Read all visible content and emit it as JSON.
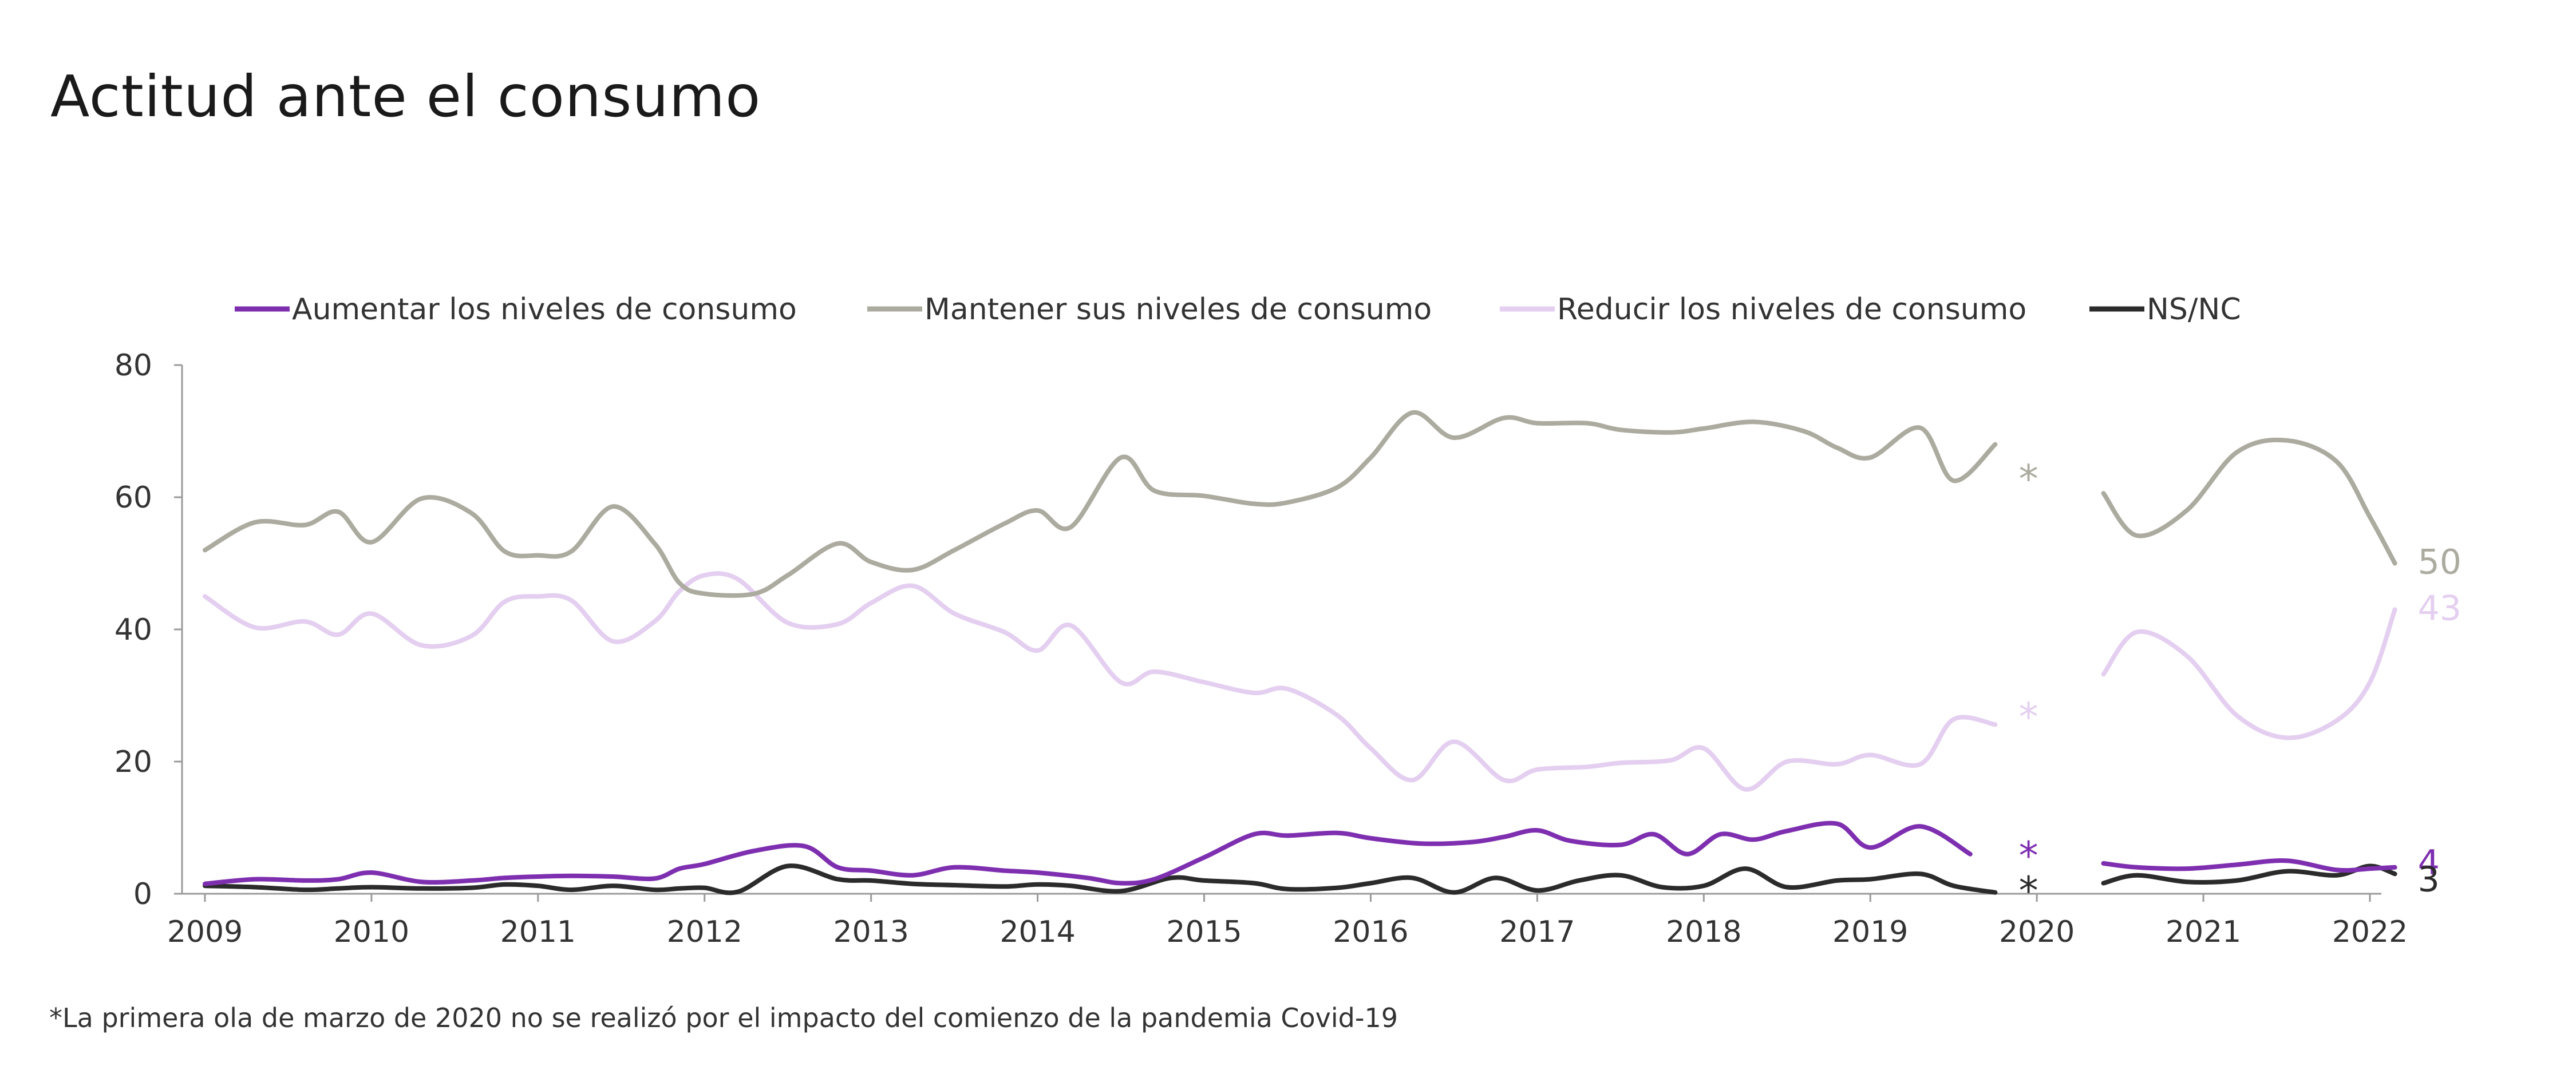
{
  "chart_data": {
    "type": "line",
    "title": "Actitud ante el consumo",
    "footnote": "*La primera ola de marzo de 2020 no se realizó por el impacto del comienzo de la pandemia Covid-19",
    "ylim": [
      0,
      80
    ],
    "yticks": [
      0,
      20,
      40,
      60,
      80
    ],
    "xlim": [
      2009,
      2022
    ],
    "xticks": [
      2009,
      2010,
      2011,
      2012,
      2013,
      2014,
      2015,
      2016,
      2017,
      2018,
      2019,
      2020,
      2021,
      2022
    ],
    "legend_position": "top",
    "grid": false,
    "missing_marker": "*",
    "series": [
      {
        "name": "Aumentar los niveles de consumo",
        "color": "#7e2fb0",
        "end_label": "4",
        "missing_y": 6.5,
        "segments": [
          [
            [
              2009.0,
              1.5
            ],
            [
              2009.3,
              2.2
            ],
            [
              2009.6,
              2.0
            ],
            [
              2009.8,
              2.2
            ],
            [
              2010.0,
              3.2
            ],
            [
              2010.3,
              1.8
            ],
            [
              2010.6,
              2.0
            ],
            [
              2010.8,
              2.4
            ],
            [
              2011.0,
              2.6
            ],
            [
              2011.2,
              2.7
            ],
            [
              2011.45,
              2.6
            ],
            [
              2011.7,
              2.3
            ],
            [
              2011.85,
              3.8
            ],
            [
              2012.0,
              4.5
            ],
            [
              2012.3,
              6.5
            ],
            [
              2012.6,
              7.2
            ],
            [
              2012.8,
              4.0
            ],
            [
              2013.0,
              3.5
            ],
            [
              2013.25,
              2.8
            ],
            [
              2013.5,
              4.0
            ],
            [
              2013.8,
              3.5
            ],
            [
              2014.0,
              3.2
            ],
            [
              2014.3,
              2.4
            ],
            [
              2014.5,
              1.6
            ],
            [
              2014.7,
              2.2
            ],
            [
              2015.0,
              5.5
            ],
            [
              2015.3,
              9.0
            ],
            [
              2015.5,
              8.8
            ],
            [
              2015.8,
              9.2
            ],
            [
              2016.0,
              8.4
            ],
            [
              2016.3,
              7.6
            ],
            [
              2016.6,
              7.8
            ],
            [
              2016.8,
              8.6
            ],
            [
              2017.0,
              9.6
            ],
            [
              2017.2,
              8.0
            ],
            [
              2017.5,
              7.4
            ],
            [
              2017.7,
              9.0
            ],
            [
              2017.9,
              6.0
            ],
            [
              2018.1,
              9.0
            ],
            [
              2018.3,
              8.2
            ],
            [
              2018.5,
              9.5
            ],
            [
              2018.8,
              10.6
            ],
            [
              2019.0,
              7.0
            ],
            [
              2019.3,
              10.2
            ],
            [
              2019.6,
              6.0
            ]
          ],
          [
            [
              2020.4,
              4.6
            ],
            [
              2020.6,
              4.0
            ],
            [
              2020.9,
              3.8
            ],
            [
              2021.2,
              4.4
            ],
            [
              2021.5,
              5.0
            ],
            [
              2021.8,
              3.6
            ],
            [
              2022.0,
              3.8
            ],
            [
              2022.15,
              4.0
            ]
          ]
        ]
      },
      {
        "name": "Mantener sus niveles de consumo",
        "color": "#acab9f",
        "end_label": "50",
        "missing_y": 63.5,
        "segments": [
          [
            [
              2009.0,
              52.0
            ],
            [
              2009.3,
              56.2
            ],
            [
              2009.6,
              55.8
            ],
            [
              2009.8,
              57.8
            ],
            [
              2010.0,
              53.2
            ],
            [
              2010.3,
              59.8
            ],
            [
              2010.6,
              57.6
            ],
            [
              2010.8,
              51.8
            ],
            [
              2011.0,
              51.2
            ],
            [
              2011.2,
              51.8
            ],
            [
              2011.45,
              58.6
            ],
            [
              2011.7,
              53.0
            ],
            [
              2011.85,
              47.0
            ],
            [
              2012.0,
              45.4
            ],
            [
              2012.3,
              45.4
            ],
            [
              2012.5,
              48.2
            ],
            [
              2012.8,
              53.0
            ],
            [
              2013.0,
              50.2
            ],
            [
              2013.25,
              49.0
            ],
            [
              2013.5,
              52.0
            ],
            [
              2013.8,
              56.0
            ],
            [
              2014.0,
              58.0
            ],
            [
              2014.2,
              55.5
            ],
            [
              2014.5,
              66.0
            ],
            [
              2014.7,
              61.0
            ],
            [
              2015.0,
              60.2
            ],
            [
              2015.3,
              59.0
            ],
            [
              2015.5,
              59.2
            ],
            [
              2015.8,
              61.5
            ],
            [
              2016.0,
              66.0
            ],
            [
              2016.25,
              72.8
            ],
            [
              2016.5,
              69.0
            ],
            [
              2016.8,
              72.0
            ],
            [
              2017.0,
              71.2
            ],
            [
              2017.3,
              71.2
            ],
            [
              2017.5,
              70.2
            ],
            [
              2017.8,
              69.8
            ],
            [
              2018.0,
              70.4
            ],
            [
              2018.3,
              71.4
            ],
            [
              2018.6,
              70.0
            ],
            [
              2018.8,
              67.5
            ],
            [
              2019.0,
              66.0
            ],
            [
              2019.3,
              70.5
            ],
            [
              2019.5,
              62.5
            ],
            [
              2019.75,
              68.0
            ]
          ],
          [
            [
              2020.4,
              60.6
            ],
            [
              2020.6,
              54.2
            ],
            [
              2020.9,
              58.0
            ],
            [
              2021.2,
              66.8
            ],
            [
              2021.5,
              68.6
            ],
            [
              2021.8,
              65.4
            ],
            [
              2022.0,
              57.0
            ],
            [
              2022.15,
              50.0
            ]
          ]
        ]
      },
      {
        "name": "Reducir los niveles de consumo",
        "color": "#e4cff0",
        "end_label": "43",
        "missing_y": 27.5,
        "segments": [
          [
            [
              2009.0,
              45.0
            ],
            [
              2009.3,
              40.3
            ],
            [
              2009.6,
              41.2
            ],
            [
              2009.8,
              39.2
            ],
            [
              2010.0,
              42.4
            ],
            [
              2010.3,
              37.6
            ],
            [
              2010.6,
              39.0
            ],
            [
              2010.8,
              44.2
            ],
            [
              2011.0,
              45.0
            ],
            [
              2011.2,
              44.4
            ],
            [
              2011.45,
              38.2
            ],
            [
              2011.7,
              41.2
            ],
            [
              2011.85,
              45.8
            ],
            [
              2012.0,
              48.2
            ],
            [
              2012.2,
              47.6
            ],
            [
              2012.5,
              41.0
            ],
            [
              2012.8,
              40.8
            ],
            [
              2013.0,
              44.0
            ],
            [
              2013.25,
              46.6
            ],
            [
              2013.5,
              42.4
            ],
            [
              2013.8,
              39.6
            ],
            [
              2014.0,
              36.8
            ],
            [
              2014.2,
              40.6
            ],
            [
              2014.5,
              32.0
            ],
            [
              2014.7,
              33.6
            ],
            [
              2015.0,
              32.0
            ],
            [
              2015.3,
              30.4
            ],
            [
              2015.5,
              31.0
            ],
            [
              2015.8,
              27.0
            ],
            [
              2016.0,
              22.0
            ],
            [
              2016.25,
              17.2
            ],
            [
              2016.5,
              23.0
            ],
            [
              2016.8,
              17.2
            ],
            [
              2017.0,
              18.8
            ],
            [
              2017.3,
              19.2
            ],
            [
              2017.5,
              19.8
            ],
            [
              2017.8,
              20.2
            ],
            [
              2018.0,
              22.0
            ],
            [
              2018.25,
              15.8
            ],
            [
              2018.5,
              20.0
            ],
            [
              2018.8,
              19.6
            ],
            [
              2019.0,
              21.0
            ],
            [
              2019.3,
              19.6
            ],
            [
              2019.5,
              26.4
            ],
            [
              2019.75,
              25.6
            ]
          ],
          [
            [
              2020.4,
              33.2
            ],
            [
              2020.6,
              39.6
            ],
            [
              2020.9,
              36.0
            ],
            [
              2021.2,
              27.0
            ],
            [
              2021.5,
              23.6
            ],
            [
              2021.8,
              26.2
            ],
            [
              2022.0,
              32.0
            ],
            [
              2022.15,
              43.0
            ]
          ]
        ]
      },
      {
        "name": "NS/NC",
        "color": "#2b2b2b",
        "end_label": "3",
        "missing_y": 1.2,
        "segments": [
          [
            [
              2009.0,
              1.2
            ],
            [
              2009.3,
              1.0
            ],
            [
              2009.6,
              0.6
            ],
            [
              2009.8,
              0.8
            ],
            [
              2010.0,
              1.0
            ],
            [
              2010.3,
              0.8
            ],
            [
              2010.6,
              0.9
            ],
            [
              2010.8,
              1.4
            ],
            [
              2011.0,
              1.2
            ],
            [
              2011.2,
              0.6
            ],
            [
              2011.45,
              1.2
            ],
            [
              2011.7,
              0.6
            ],
            [
              2011.85,
              0.8
            ],
            [
              2012.0,
              0.9
            ],
            [
              2012.2,
              0.3
            ],
            [
              2012.5,
              4.2
            ],
            [
              2012.8,
              2.2
            ],
            [
              2013.0,
              2.0
            ],
            [
              2013.25,
              1.5
            ],
            [
              2013.5,
              1.3
            ],
            [
              2013.8,
              1.1
            ],
            [
              2014.0,
              1.4
            ],
            [
              2014.2,
              1.2
            ],
            [
              2014.5,
              0.4
            ],
            [
              2014.8,
              2.4
            ],
            [
              2015.0,
              2.0
            ],
            [
              2015.3,
              1.6
            ],
            [
              2015.5,
              0.7
            ],
            [
              2015.8,
              0.9
            ],
            [
              2016.0,
              1.6
            ],
            [
              2016.25,
              2.4
            ],
            [
              2016.5,
              0.2
            ],
            [
              2016.75,
              2.4
            ],
            [
              2017.0,
              0.5
            ],
            [
              2017.25,
              2.0
            ],
            [
              2017.5,
              2.8
            ],
            [
              2017.75,
              1.0
            ],
            [
              2018.0,
              1.2
            ],
            [
              2018.25,
              3.8
            ],
            [
              2018.5,
              1.0
            ],
            [
              2018.8,
              2.0
            ],
            [
              2019.0,
              2.2
            ],
            [
              2019.3,
              3.0
            ],
            [
              2019.5,
              1.2
            ],
            [
              2019.75,
              0.2
            ]
          ],
          [
            [
              2020.4,
              1.6
            ],
            [
              2020.6,
              2.8
            ],
            [
              2020.9,
              1.8
            ],
            [
              2021.2,
              2.0
            ],
            [
              2021.5,
              3.4
            ],
            [
              2021.8,
              2.8
            ],
            [
              2022.0,
              4.2
            ],
            [
              2022.15,
              3.0
            ]
          ]
        ]
      }
    ]
  }
}
